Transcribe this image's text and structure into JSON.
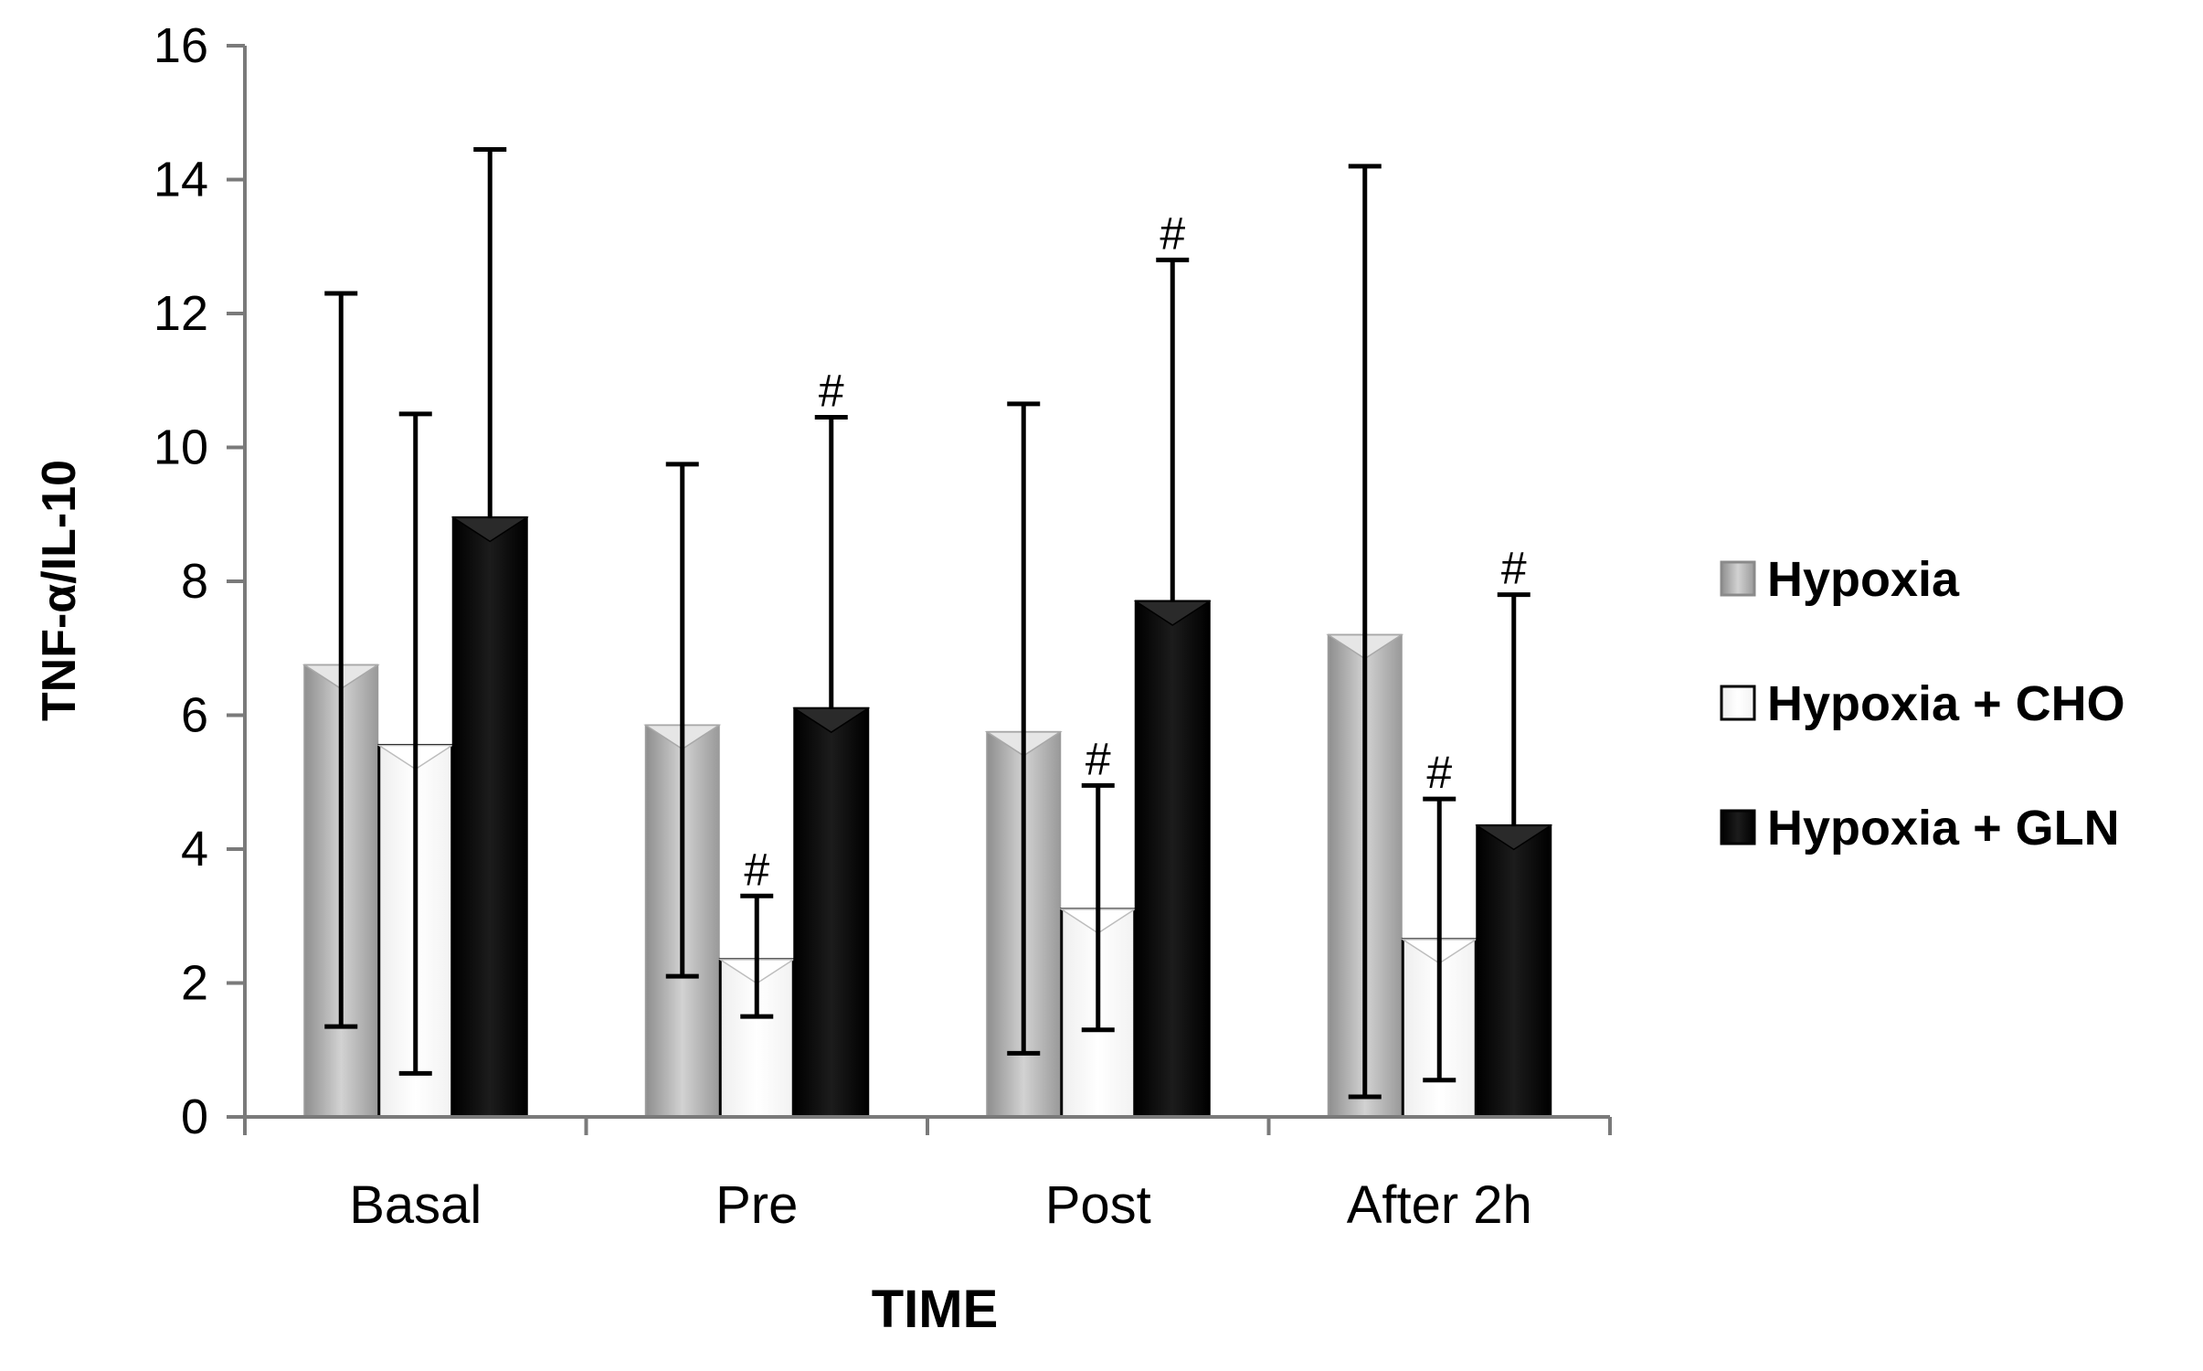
{
  "chart_data": {
    "type": "bar",
    "title": "",
    "xlabel": "TIME",
    "ylabel": "TNF-α/IL-10",
    "ylim": [
      0,
      16
    ],
    "yticks": [
      0,
      2,
      4,
      6,
      8,
      10,
      12,
      14,
      16
    ],
    "grid": false,
    "legend_position": "right",
    "categories": [
      "Basal",
      "Pre",
      "Post",
      "After 2h"
    ],
    "series": [
      {
        "name": "Hypoxia",
        "color": "#b8b8b8",
        "values": [
          6.75,
          5.85,
          5.75,
          7.2
        ],
        "error_low": [
          1.35,
          2.1,
          0.95,
          0.3
        ],
        "error_high": [
          12.3,
          9.75,
          10.65,
          14.2
        ],
        "annotations": [
          "",
          "",
          "",
          ""
        ]
      },
      {
        "name": "Hypoxia + CHO",
        "color": "#ffffff",
        "values": [
          5.55,
          2.35,
          3.1,
          2.65
        ],
        "error_low": [
          0.65,
          1.5,
          1.3,
          0.55
        ],
        "error_high": [
          10.5,
          3.3,
          4.95,
          4.75
        ],
        "annotations": [
          "",
          "#",
          "#",
          "#"
        ]
      },
      {
        "name": "Hypoxia + GLN",
        "color": "#000000",
        "values": [
          8.95,
          6.1,
          7.7,
          4.35
        ],
        "error_low": [
          8.95,
          6.1,
          7.7,
          4.35
        ],
        "error_high": [
          14.45,
          10.45,
          12.8,
          7.8
        ],
        "annotations": [
          "",
          "#",
          "#",
          "#"
        ]
      }
    ]
  }
}
